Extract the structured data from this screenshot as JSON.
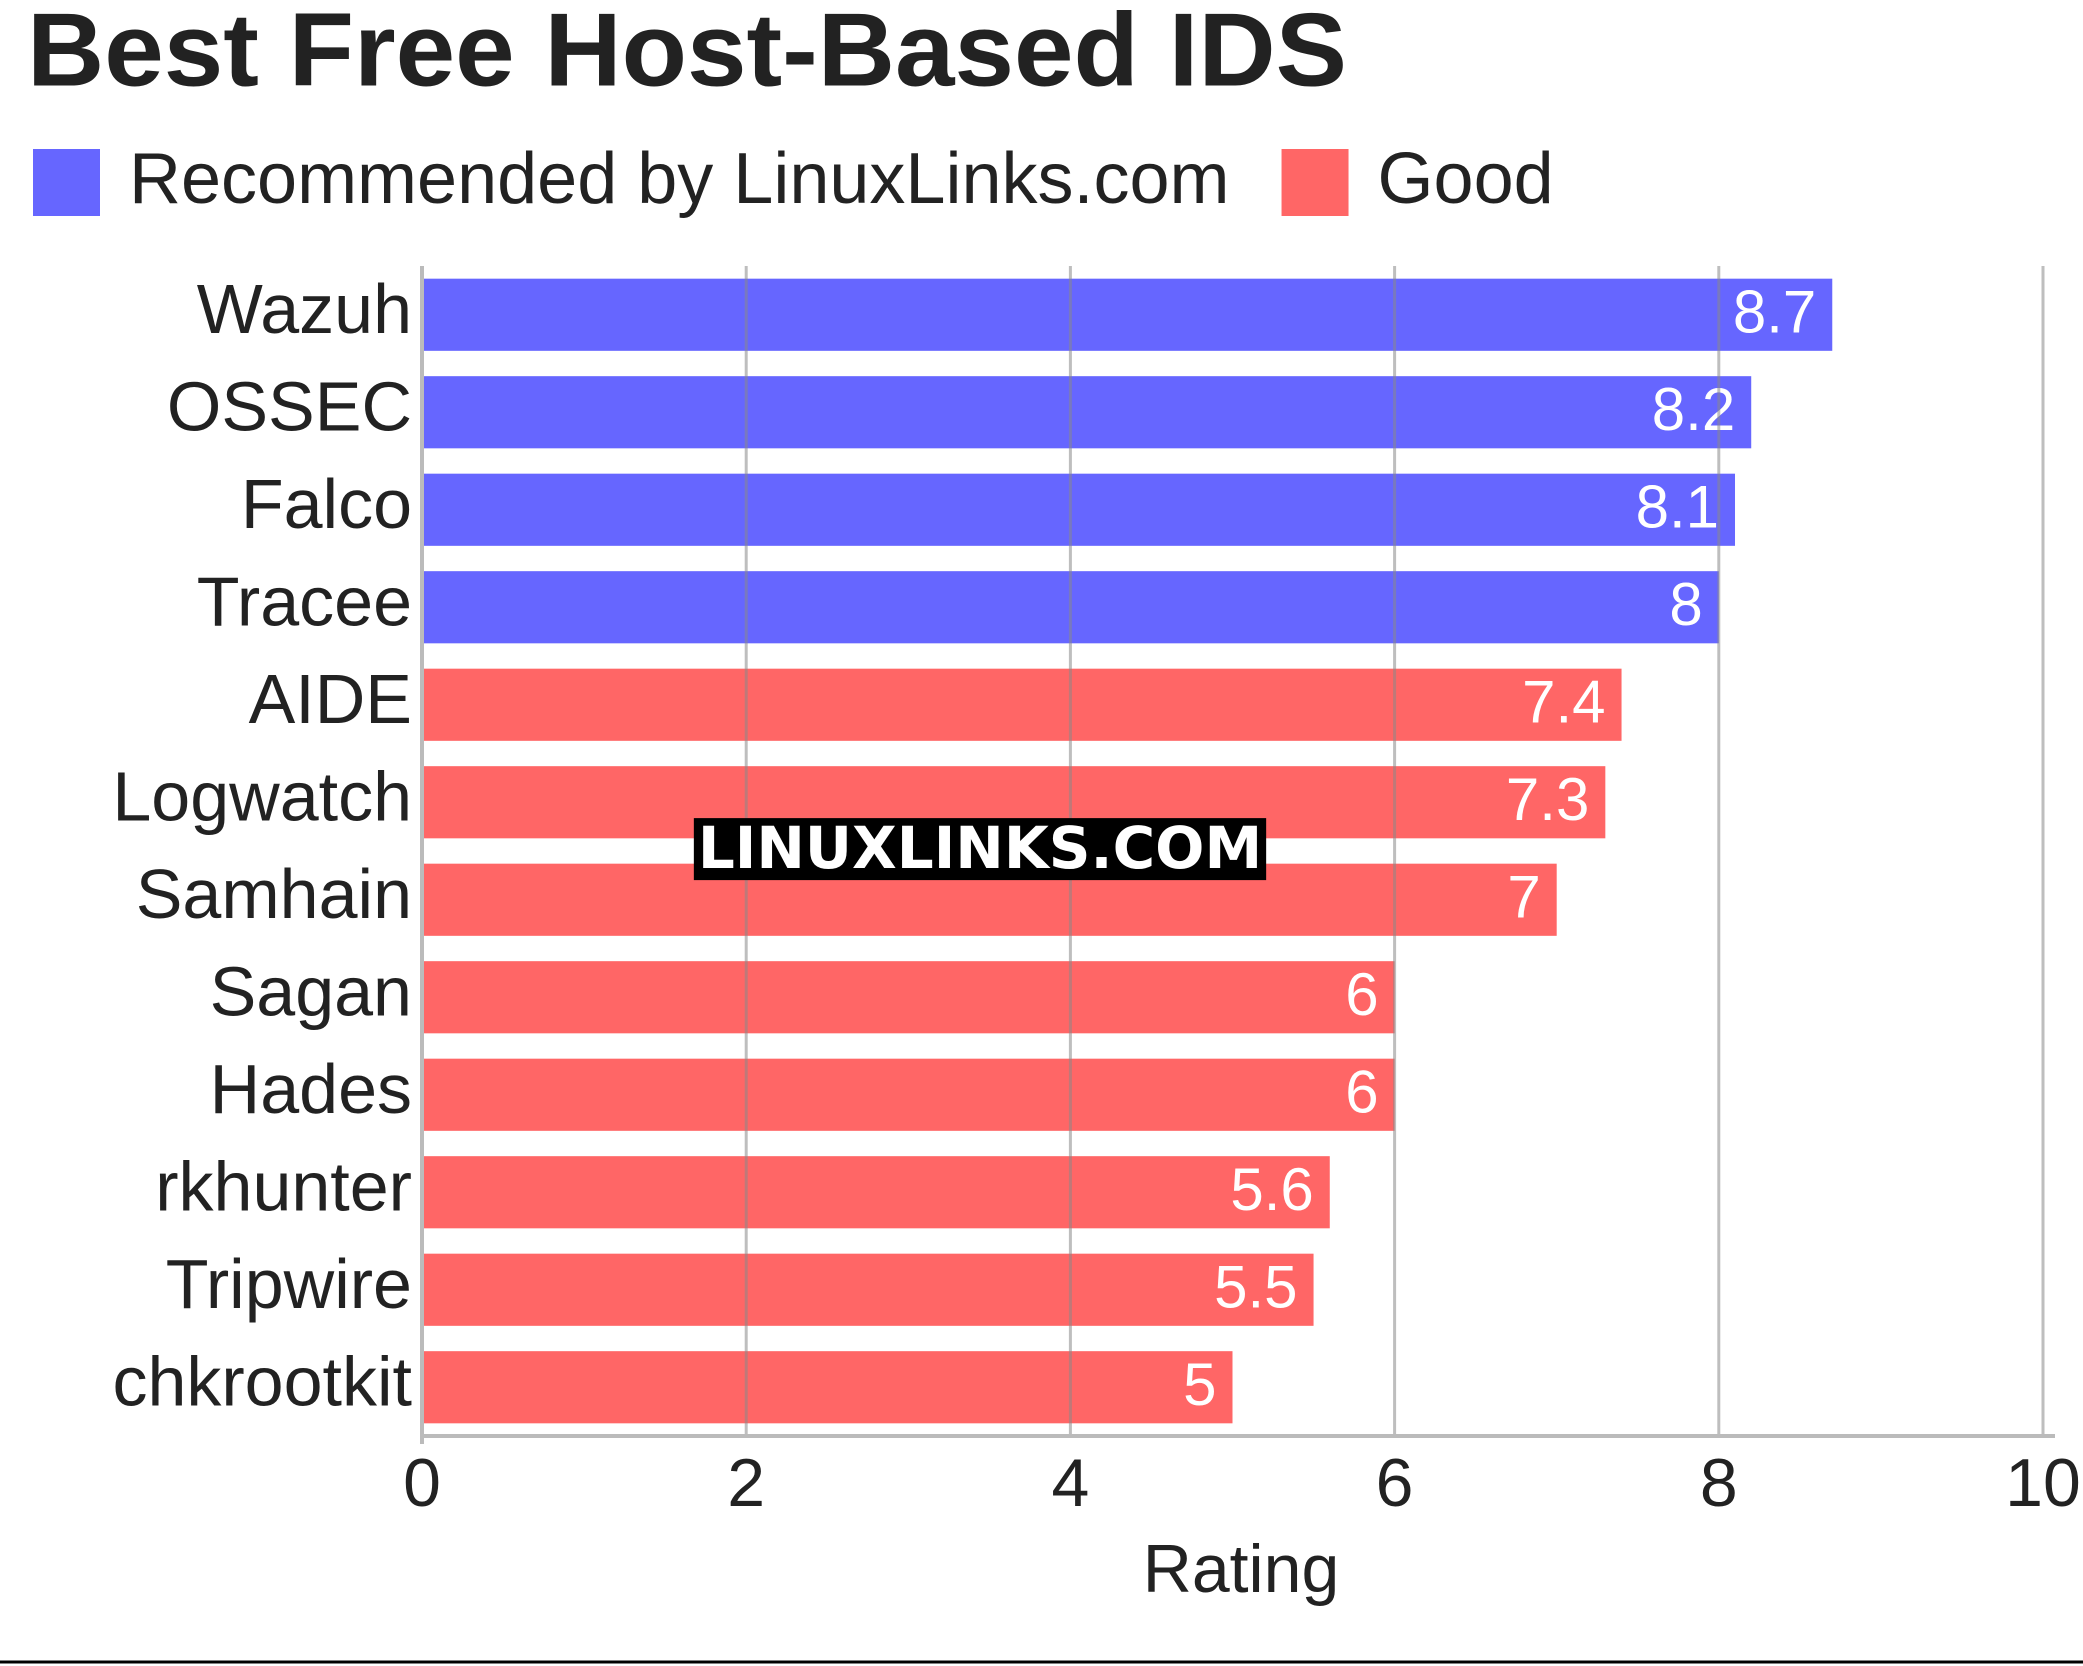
{
  "chart_data": {
    "type": "bar",
    "orientation": "horizontal",
    "title": "Best Free Host-Based IDS",
    "watermark": "LINUXLINKS.COM",
    "x_label": "Rating",
    "categories": [
      "Wazuh",
      "OSSEC",
      "Falco",
      "Tracee",
      "AIDE",
      "Logwatch",
      "Samhain",
      "Sagan",
      "Hades",
      "rkhunter",
      "Tripwire",
      "chkrootkit"
    ],
    "series": [
      {
        "name": "Recommended by LinuxLinks.com",
        "color": "#6666ff",
        "values": [
          8.7,
          8.2,
          8.1,
          8,
          null,
          null,
          null,
          null,
          null,
          null,
          null,
          null
        ]
      },
      {
        "name": "Good",
        "color": "#ff6666",
        "values": [
          null,
          null,
          null,
          null,
          7.4,
          7.3,
          7,
          6,
          6,
          5.6,
          5.5,
          5
        ]
      }
    ],
    "xlim": [
      0,
      10
    ],
    "xticks": [
      0,
      2,
      4,
      6,
      8,
      10
    ],
    "grid": true,
    "legend": "top-left"
  }
}
